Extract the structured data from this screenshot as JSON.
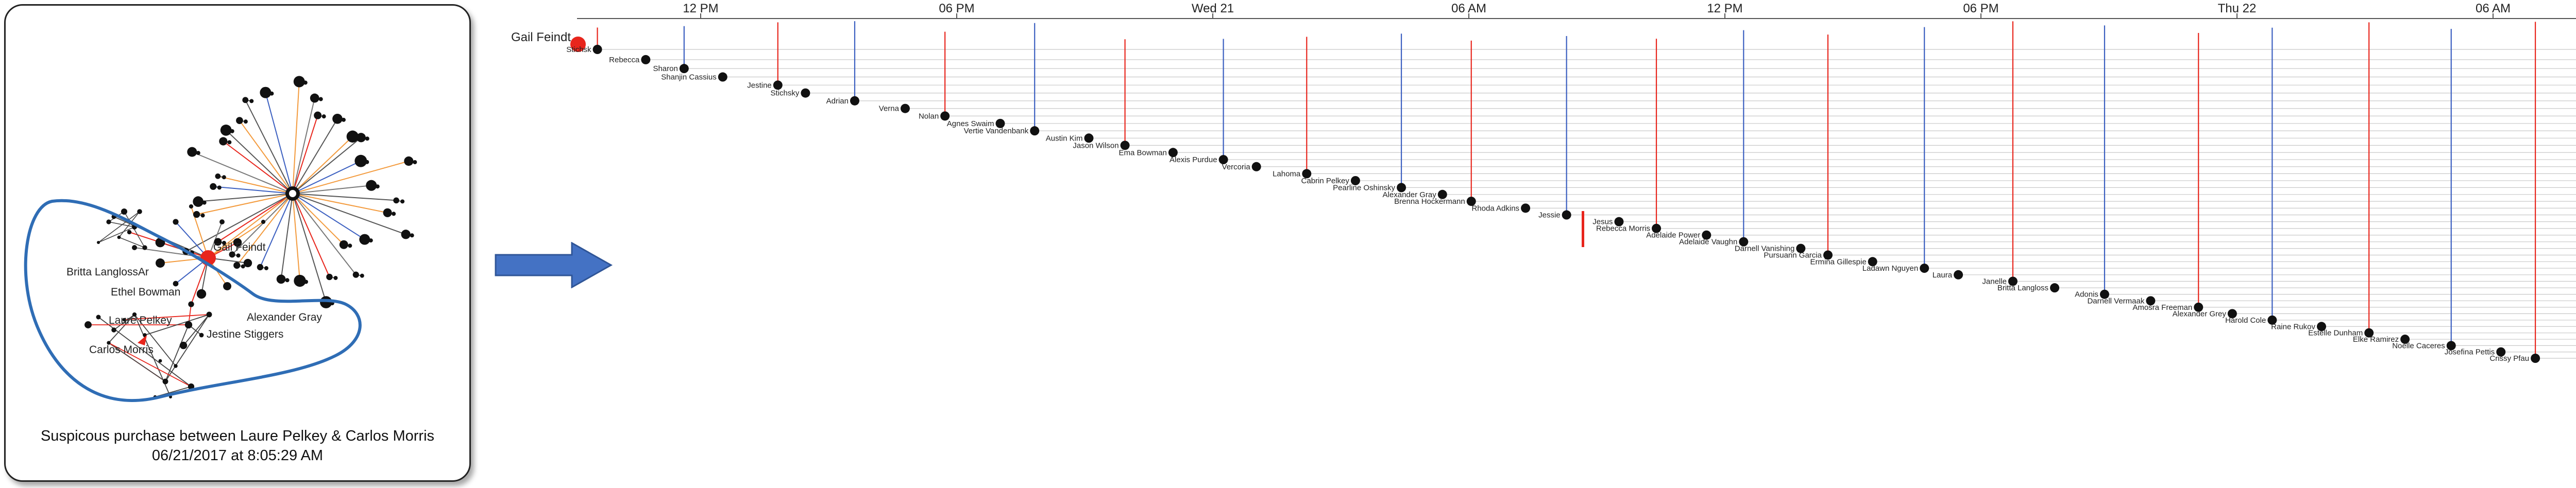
{
  "caption": {
    "line1": "Suspicous purchase between Laure Pelkey & Carlos Morris",
    "line2": "06/21/2017 at 8:05:29 AM"
  },
  "graph": {
    "highlight_label": "Gail Feindt",
    "labels": [
      "Britta LanglossAr",
      "Ethel Bowman",
      "Laure Pelkey",
      "Carlos Morris",
      "Alexander Gray",
      "Jestine Stiggers"
    ]
  },
  "timeline": {
    "ticks": [
      "12 PM",
      "06 PM",
      "Wed 21",
      "06 AM",
      "12 PM",
      "06 PM",
      "Thu 22",
      "06 AM"
    ],
    "highlight_person": "Gail Feindt",
    "people": [
      "Stichsk",
      "Rebecca",
      "Sharon",
      "Shanjin Cassius",
      "Jestine",
      "Stichsky",
      "Adrian",
      "Verna",
      "Nolan",
      "Agnes Swaim",
      "Vertie Vandenbank",
      "Austin Kim",
      "Jason Wilson",
      "Ema Bowman",
      "Alexis Purdue",
      "Vercoria",
      "Lahoma",
      "Cabrin Pelkey",
      "Pearline Oshinsky",
      "Alexander Gray",
      "Brenna Hockermann",
      "Rhoda Adkins",
      "Jessie",
      "Jesus",
      "Rebecca Morris",
      "Adelaide Power",
      "Adelaide Vaughn",
      "Darnell Vanishing",
      "Pursuann Garcia",
      "Ermina Gillespie",
      "Ladawn Nguyen",
      "Laura",
      "Janelle",
      "Britta Langloss",
      "Adonis",
      "Darnell Vermaak",
      "Amosra Freeman",
      "Alexander Grey",
      "Harold Cole",
      "Raine Rukov",
      "Estelle Dunham",
      "Elke Ramirez",
      "Noelle Caceres",
      "Josefina Pettis",
      "Crissy Pfau"
    ]
  },
  "colors": {
    "red": "#e8251c",
    "orange": "#f39a3c",
    "blue": "#3b5fc0",
    "arrow": "#4472c4"
  }
}
